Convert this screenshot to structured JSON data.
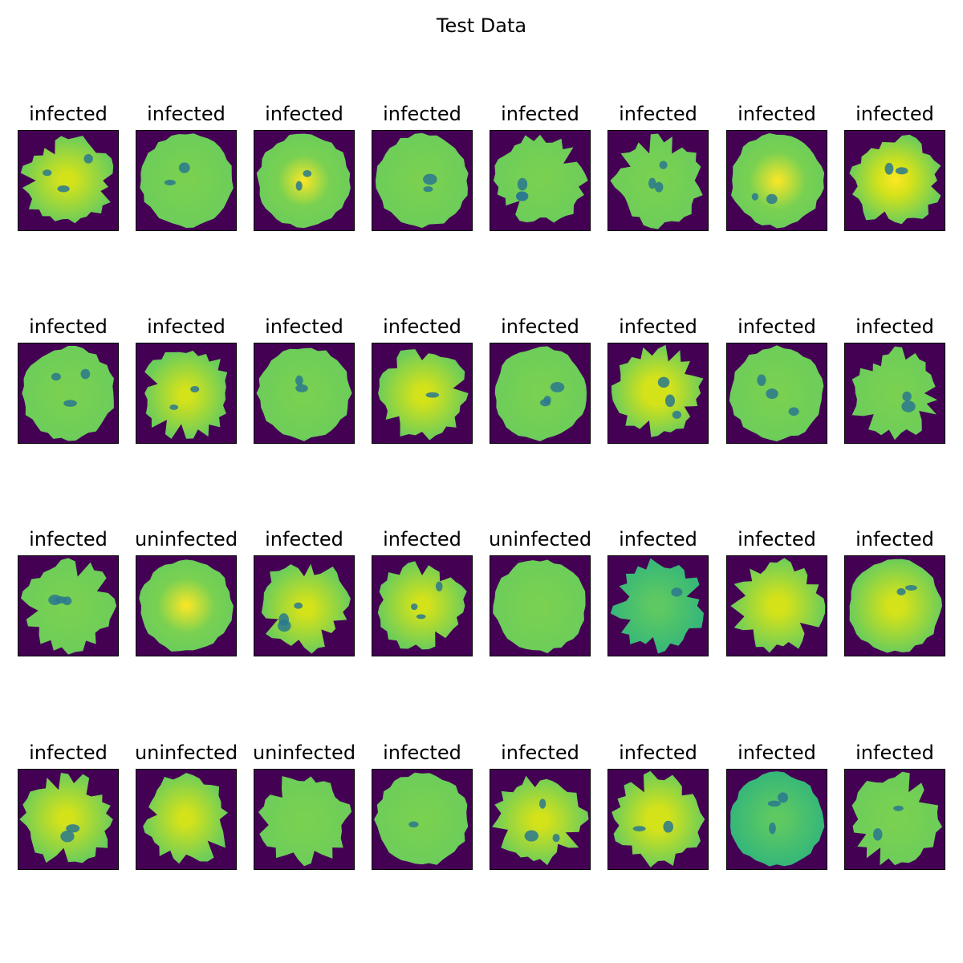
{
  "figure": {
    "title": "Test Data"
  },
  "colors": {
    "background": "#440154",
    "cell_mid": "#7ad151",
    "cell_bright": "#d4e21a",
    "cell_center_glow": "#fde725",
    "parasite_dark": "#2a788e",
    "parasite_core": "#21918c"
  },
  "panels": [
    {
      "label": "infected",
      "spots": 3,
      "glow": 0.2,
      "shape": "irregular",
      "tone": "bright"
    },
    {
      "label": "infected",
      "spots": 2,
      "glow": 0.1,
      "shape": "round",
      "tone": "mid"
    },
    {
      "label": "infected",
      "spots": 2,
      "glow": 0.9,
      "shape": "round",
      "tone": "mid"
    },
    {
      "label": "infected",
      "spots": 2,
      "glow": 0.3,
      "shape": "round",
      "tone": "mid"
    },
    {
      "label": "infected",
      "spots": 3,
      "glow": 0.1,
      "shape": "irregular",
      "tone": "mid"
    },
    {
      "label": "infected",
      "spots": 3,
      "glow": 0.1,
      "shape": "irregular",
      "tone": "mid"
    },
    {
      "label": "infected",
      "spots": 2,
      "glow": 1.0,
      "shape": "round",
      "tone": "mid"
    },
    {
      "label": "infected",
      "spots": 2,
      "glow": 0.6,
      "shape": "irregular",
      "tone": "bright"
    },
    {
      "label": "infected",
      "spots": 3,
      "glow": 0.1,
      "shape": "round",
      "tone": "mid"
    },
    {
      "label": "infected",
      "spots": 2,
      "glow": 0.2,
      "shape": "irregular",
      "tone": "bright"
    },
    {
      "label": "infected",
      "spots": 2,
      "glow": 0.1,
      "shape": "round",
      "tone": "mid"
    },
    {
      "label": "infected",
      "spots": 1,
      "glow": 0.3,
      "shape": "irregular",
      "tone": "bright"
    },
    {
      "label": "infected",
      "spots": 3,
      "glow": 0.2,
      "shape": "round",
      "tone": "mid"
    },
    {
      "label": "infected",
      "spots": 3,
      "glow": 0.5,
      "shape": "irregular",
      "tone": "bright"
    },
    {
      "label": "infected",
      "spots": 3,
      "glow": 0.0,
      "shape": "round",
      "tone": "mid"
    },
    {
      "label": "infected",
      "spots": 2,
      "glow": 0.2,
      "shape": "irregular",
      "tone": "mid"
    },
    {
      "label": "infected",
      "spots": 3,
      "glow": 0.1,
      "shape": "irregular",
      "tone": "mid"
    },
    {
      "label": "uninfected",
      "spots": 0,
      "glow": 1.0,
      "shape": "round",
      "tone": "mid"
    },
    {
      "label": "infected",
      "spots": 3,
      "glow": 0.2,
      "shape": "irregular",
      "tone": "bright"
    },
    {
      "label": "infected",
      "spots": 3,
      "glow": 0.2,
      "shape": "irregular",
      "tone": "bright"
    },
    {
      "label": "uninfected",
      "spots": 0,
      "glow": 0.1,
      "shape": "round",
      "tone": "mid"
    },
    {
      "label": "infected",
      "spots": 1,
      "glow": 0.2,
      "shape": "irregular",
      "tone": "teal"
    },
    {
      "label": "infected",
      "spots": 0,
      "glow": 0.3,
      "shape": "irregular",
      "tone": "bright"
    },
    {
      "label": "infected",
      "spots": 2,
      "glow": 0.3,
      "shape": "round",
      "tone": "bright"
    },
    {
      "label": "infected",
      "spots": 2,
      "glow": 0.2,
      "shape": "irregular",
      "tone": "bright"
    },
    {
      "label": "uninfected",
      "spots": 0,
      "glow": 0.0,
      "shape": "irregular",
      "tone": "bright"
    },
    {
      "label": "uninfected",
      "spots": 0,
      "glow": 0.1,
      "shape": "irregular",
      "tone": "mid"
    },
    {
      "label": "infected",
      "spots": 1,
      "glow": 0.1,
      "shape": "round",
      "tone": "mid"
    },
    {
      "label": "infected",
      "spots": 3,
      "glow": 0.2,
      "shape": "irregular",
      "tone": "bright"
    },
    {
      "label": "infected",
      "spots": 2,
      "glow": 0.4,
      "shape": "irregular",
      "tone": "bright"
    },
    {
      "label": "infected",
      "spots": 3,
      "glow": 0.1,
      "shape": "round",
      "tone": "teal"
    },
    {
      "label": "infected",
      "spots": 2,
      "glow": 0.3,
      "shape": "irregular",
      "tone": "mid"
    }
  ]
}
